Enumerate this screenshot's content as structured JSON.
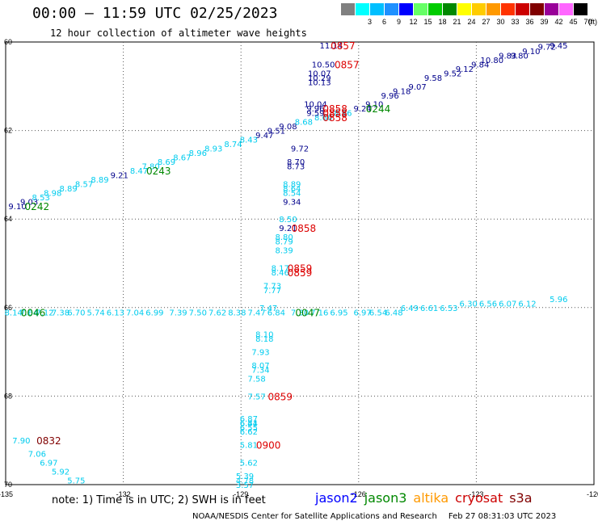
{
  "header": {
    "title": "00:00 — 11:59 UTC 02/25/2023",
    "subtitle": "12 hour collection of altimeter wave heights"
  },
  "scale": {
    "unit": "(ft)",
    "items": [
      {
        "label": "",
        "color": "#808080"
      },
      {
        "label": "3",
        "color": "#00ffff"
      },
      {
        "label": "6",
        "color": "#00bfff"
      },
      {
        "label": "9",
        "color": "#1e90ff"
      },
      {
        "label": "12",
        "color": "#0000ff"
      },
      {
        "label": "15",
        "color": "#66ff66"
      },
      {
        "label": "18",
        "color": "#00cc00"
      },
      {
        "label": "21",
        "color": "#008800"
      },
      {
        "label": "24",
        "color": "#ffff00"
      },
      {
        "label": "27",
        "color": "#ffcc00"
      },
      {
        "label": "30",
        "color": "#ff9900"
      },
      {
        "label": "33",
        "color": "#ff3300"
      },
      {
        "label": "36",
        "color": "#cc0000"
      },
      {
        "label": "39",
        "color": "#800000"
      },
      {
        "label": "42",
        "color": "#990099"
      },
      {
        "label": "45",
        "color": "#ff66ff"
      },
      {
        "label": "70",
        "color": "#000000"
      }
    ]
  },
  "axes": {
    "lon_labels": [
      "-135",
      "-132",
      "-129",
      "-126",
      "-123",
      "-120"
    ],
    "lat_labels": [
      "60",
      "62",
      "64",
      "66",
      "68",
      "70"
    ]
  },
  "legend": {
    "note": "note: 1) Time is in UTC; 2) SWH is in feet",
    "satellites": [
      {
        "name": "jason2",
        "color": "#0000ff"
      },
      {
        "name": "jason3",
        "color": "#008800"
      },
      {
        "name": "altika",
        "color": "#ff9900"
      },
      {
        "name": "cryosat",
        "color": "#cc0000"
      },
      {
        "name": "s3a",
        "color": "#800000"
      }
    ]
  },
  "footer": {
    "credit": "NOAA/NESDIS Center for Satellite Applications and Research",
    "timestamp": "Feb 27 08:31:03 UTC 2023"
  },
  "colors": {
    "blue": "#00008b",
    "cyan": "#00ccee",
    "red": "#dd0000",
    "green": "#008800",
    "maroon": "#800000"
  },
  "tracks": [
    {
      "name": "track-jason3-0242-0244",
      "color": "cyan",
      "points": [
        {
          "lon": -134.7,
          "lat": 63.7,
          "text": "9.10",
          "color": "blue"
        },
        {
          "lon": -134.4,
          "lat": 63.6,
          "text": "9.03",
          "color": "blue"
        },
        {
          "lon": -134.1,
          "lat": 63.5,
          "text": "8.53"
        },
        {
          "lon": -133.8,
          "lat": 63.4,
          "text": "8.98"
        },
        {
          "lon": -133.4,
          "lat": 63.3,
          "text": "8.89"
        },
        {
          "lon": -133.0,
          "lat": 63.2,
          "text": "8.57"
        },
        {
          "lon": -132.6,
          "lat": 63.1,
          "text": "8.89"
        },
        {
          "lon": -132.1,
          "lat": 63.0,
          "text": "9.21",
          "color": "blue"
        },
        {
          "lon": -131.6,
          "lat": 62.9,
          "text": "8.47"
        },
        {
          "lon": -131.3,
          "lat": 62.8,
          "text": "7.80"
        },
        {
          "lon": -130.9,
          "lat": 62.7,
          "text": "8.69"
        },
        {
          "lon": -130.5,
          "lat": 62.6,
          "text": "8.67"
        },
        {
          "lon": -130.1,
          "lat": 62.5,
          "text": "8.96"
        },
        {
          "lon": -129.7,
          "lat": 62.4,
          "text": "8.93"
        },
        {
          "lon": -129.2,
          "lat": 62.3,
          "text": "8.74"
        },
        {
          "lon": -128.8,
          "lat": 62.2,
          "text": "8.43"
        },
        {
          "lon": -128.4,
          "lat": 62.1,
          "text": "9.47",
          "color": "blue"
        },
        {
          "lon": -128.1,
          "lat": 62.0,
          "text": "9.51",
          "color": "blue"
        },
        {
          "lon": -127.8,
          "lat": 61.9,
          "text": "9.08",
          "color": "blue"
        },
        {
          "lon": -127.4,
          "lat": 61.8,
          "text": "8.68"
        },
        {
          "lon": -126.9,
          "lat": 61.7,
          "text": "8.66"
        },
        {
          "lon": -126.4,
          "lat": 61.6,
          "text": "8.96"
        },
        {
          "lon": -125.9,
          "lat": 61.5,
          "text": "9.24",
          "color": "blue"
        },
        {
          "lon": -125.6,
          "lat": 61.4,
          "text": "9.10",
          "color": "blue"
        },
        {
          "lon": -125.2,
          "lat": 61.2,
          "text": "9.96",
          "color": "blue"
        },
        {
          "lon": -124.9,
          "lat": 61.1,
          "text": "9.18",
          "color": "blue"
        },
        {
          "lon": -124.5,
          "lat": 61.0,
          "text": "9.07",
          "color": "blue"
        },
        {
          "lon": -124.1,
          "lat": 60.8,
          "text": "9.58",
          "color": "blue"
        },
        {
          "lon": -123.6,
          "lat": 60.7,
          "text": "9.52",
          "color": "blue"
        },
        {
          "lon": -123.3,
          "lat": 60.6,
          "text": "9.12",
          "color": "blue"
        },
        {
          "lon": -122.9,
          "lat": 60.5,
          "text": "9.84",
          "color": "blue"
        },
        {
          "lon": -122.6,
          "lat": 60.4,
          "text": "10.80",
          "color": "blue"
        },
        {
          "lon": -122.2,
          "lat": 60.3,
          "text": "9.83",
          "color": "blue"
        },
        {
          "lon": -121.9,
          "lat": 60.3,
          "text": "9.80",
          "color": "blue"
        },
        {
          "lon": -121.6,
          "lat": 60.2,
          "text": "9.10",
          "color": "blue"
        },
        {
          "lon": -121.2,
          "lat": 60.1,
          "text": "9.72",
          "color": "blue"
        },
        {
          "lon": -120.9,
          "lat": 60.0,
          "text": "9.45",
          "color": "blue"
        }
      ]
    },
    {
      "name": "track-jason3-0046-0047",
      "color": "cyan",
      "points": [
        {
          "lon": -134.8,
          "lat": 66.1,
          "text": "8.14"
        },
        {
          "lon": -134.4,
          "lat": 66.1,
          "text": "7.64"
        },
        {
          "lon": -134.0,
          "lat": 66.1,
          "text": "7.12"
        },
        {
          "lon": -133.6,
          "lat": 66.1,
          "text": "7.38"
        },
        {
          "lon": -133.2,
          "lat": 66.1,
          "text": "6.70"
        },
        {
          "lon": -132.7,
          "lat": 66.1,
          "text": "5.74"
        },
        {
          "lon": -132.2,
          "lat": 66.1,
          "text": "6.13"
        },
        {
          "lon": -131.7,
          "lat": 66.1,
          "text": "7.04"
        },
        {
          "lon": -131.2,
          "lat": 66.1,
          "text": "6.99"
        },
        {
          "lon": -130.6,
          "lat": 66.1,
          "text": "7.39"
        },
        {
          "lon": -130.1,
          "lat": 66.1,
          "text": "7.50"
        },
        {
          "lon": -129.6,
          "lat": 66.1,
          "text": "7.62"
        },
        {
          "lon": -129.1,
          "lat": 66.1,
          "text": "8.38"
        },
        {
          "lon": -128.6,
          "lat": 66.1,
          "text": "7.47"
        },
        {
          "lon": -128.1,
          "lat": 66.1,
          "text": "6.84"
        },
        {
          "lon": -127.5,
          "lat": 66.1,
          "text": "7.30"
        },
        {
          "lon": -127.0,
          "lat": 66.1,
          "text": "7.16"
        },
        {
          "lon": -126.5,
          "lat": 66.1,
          "text": "6.95"
        },
        {
          "lon": -125.9,
          "lat": 66.1,
          "text": "6.97"
        },
        {
          "lon": -125.5,
          "lat": 66.1,
          "text": "6.54"
        },
        {
          "lon": -125.1,
          "lat": 66.1,
          "text": "6.48"
        },
        {
          "lon": -124.7,
          "lat": 66.0,
          "text": "6.49"
        },
        {
          "lon": -124.2,
          "lat": 66.0,
          "text": "6.61"
        },
        {
          "lon": -123.7,
          "lat": 66.0,
          "text": "6.53"
        },
        {
          "lon": -123.2,
          "lat": 65.9,
          "text": "6.30"
        },
        {
          "lon": -122.7,
          "lat": 65.9,
          "text": "6.56"
        },
        {
          "lon": -122.2,
          "lat": 65.9,
          "text": "6.07"
        },
        {
          "lon": -121.7,
          "lat": 65.9,
          "text": "6.12"
        },
        {
          "lon": -120.9,
          "lat": 65.8,
          "text": "5.96"
        }
      ]
    },
    {
      "name": "track-cryosat-0857-0900",
      "color": "cyan",
      "points": [
        {
          "lon": -126.7,
          "lat": 60.0,
          "text": "11.14",
          "color": "blue"
        },
        {
          "lon": -126.9,
          "lat": 60.5,
          "text": "10.50",
          "color": "blue"
        },
        {
          "lon": -127.0,
          "lat": 60.7,
          "text": "10.07",
          "color": "blue"
        },
        {
          "lon": -127.0,
          "lat": 60.8,
          "text": "10.29",
          "color": "blue"
        },
        {
          "lon": -127.0,
          "lat": 60.9,
          "text": "10.13",
          "color": "blue"
        },
        {
          "lon": -127.1,
          "lat": 61.4,
          "text": "10.04",
          "color": "blue"
        },
        {
          "lon": -127.1,
          "lat": 61.5,
          "text": "9.96",
          "color": "blue"
        },
        {
          "lon": -127.1,
          "lat": 61.6,
          "text": "9.59",
          "color": "blue"
        },
        {
          "lon": -127.5,
          "lat": 62.4,
          "text": "9.72",
          "color": "blue"
        },
        {
          "lon": -127.6,
          "lat": 62.7,
          "text": "8.70",
          "color": "blue"
        },
        {
          "lon": -127.6,
          "lat": 62.8,
          "text": "8.73",
          "color": "blue"
        },
        {
          "lon": -127.7,
          "lat": 63.2,
          "text": "8.89"
        },
        {
          "lon": -127.7,
          "lat": 63.3,
          "text": "8.64"
        },
        {
          "lon": -127.7,
          "lat": 63.4,
          "text": "8.54"
        },
        {
          "lon": -127.7,
          "lat": 63.6,
          "text": "9.34",
          "color": "blue"
        },
        {
          "lon": -127.8,
          "lat": 64.0,
          "text": "8.50"
        },
        {
          "lon": -127.8,
          "lat": 64.2,
          "text": "9.21",
          "color": "blue"
        },
        {
          "lon": -127.9,
          "lat": 64.4,
          "text": "8.80"
        },
        {
          "lon": -127.9,
          "lat": 64.5,
          "text": "8.79"
        },
        {
          "lon": -127.9,
          "lat": 64.7,
          "text": "8.39"
        },
        {
          "lon": -128.0,
          "lat": 65.1,
          "text": "8.17"
        },
        {
          "lon": -128.0,
          "lat": 65.2,
          "text": "8.46"
        },
        {
          "lon": -128.2,
          "lat": 65.5,
          "text": "7.73"
        },
        {
          "lon": -128.2,
          "lat": 65.6,
          "text": "7.77"
        },
        {
          "lon": -128.3,
          "lat": 66.0,
          "text": "7.47"
        },
        {
          "lon": -128.4,
          "lat": 66.6,
          "text": "8.10"
        },
        {
          "lon": -128.4,
          "lat": 66.7,
          "text": "8.18"
        },
        {
          "lon": -128.5,
          "lat": 67.0,
          "text": "7.93"
        },
        {
          "lon": -128.5,
          "lat": 67.3,
          "text": "8.07"
        },
        {
          "lon": -128.5,
          "lat": 67.4,
          "text": "7.34"
        },
        {
          "lon": -128.6,
          "lat": 67.6,
          "text": "7.58"
        },
        {
          "lon": -128.6,
          "lat": 68.0,
          "text": "7.57"
        },
        {
          "lon": -128.8,
          "lat": 68.5,
          "text": "6.87"
        },
        {
          "lon": -128.8,
          "lat": 68.6,
          "text": "6.81"
        },
        {
          "lon": -128.8,
          "lat": 68.6,
          "text": "6.44"
        },
        {
          "lon": -128.8,
          "lat": 68.7,
          "text": "6.55"
        },
        {
          "lon": -128.8,
          "lat": 68.8,
          "text": "6.62"
        },
        {
          "lon": -128.8,
          "lat": 69.1,
          "text": "5.81"
        },
        {
          "lon": -128.8,
          "lat": 69.5,
          "text": "5.62"
        },
        {
          "lon": -128.9,
          "lat": 69.8,
          "text": "5.39"
        },
        {
          "lon": -128.9,
          "lat": 69.9,
          "text": "4.78"
        },
        {
          "lon": -128.9,
          "lat": 70.0,
          "text": "3.57"
        }
      ]
    },
    {
      "name": "track-s3a-0832",
      "color": "cyan",
      "points": [
        {
          "lon": -134.6,
          "lat": 69.0,
          "text": "7.90"
        },
        {
          "lon": -134.2,
          "lat": 69.3,
          "text": "7.06"
        },
        {
          "lon": -133.9,
          "lat": 69.5,
          "text": "6.97"
        },
        {
          "lon": -133.6,
          "lat": 69.7,
          "text": "5.92"
        },
        {
          "lon": -133.2,
          "lat": 69.9,
          "text": "5.75"
        }
      ]
    }
  ],
  "time_labels": [
    {
      "text": "0857",
      "lon": -126.4,
      "lat": 60.0,
      "color": "red"
    },
    {
      "text": "0857",
      "lon": -126.3,
      "lat": 60.5,
      "color": "red"
    },
    {
      "text": "0858",
      "lon": -126.6,
      "lat": 61.5,
      "color": "red"
    },
    {
      "text": "0858",
      "lon": -126.6,
      "lat": 61.6,
      "color": "red"
    },
    {
      "text": "0858",
      "lon": -126.6,
      "lat": 61.7,
      "color": "red"
    },
    {
      "text": "0858",
      "lon": -127.4,
      "lat": 64.2,
      "color": "red"
    },
    {
      "text": "0859",
      "lon": -127.5,
      "lat": 65.1,
      "color": "red"
    },
    {
      "text": "0859",
      "lon": -127.5,
      "lat": 65.2,
      "color": "red"
    },
    {
      "text": "0859",
      "lon": -128.0,
      "lat": 68.0,
      "color": "red"
    },
    {
      "text": "0900",
      "lon": -128.3,
      "lat": 69.1,
      "color": "red"
    },
    {
      "text": "0832",
      "lon": -133.9,
      "lat": 69.0,
      "color": "maroon"
    },
    {
      "text": "0244",
      "lon": -125.5,
      "lat": 61.5,
      "color": "green"
    },
    {
      "text": "0243",
      "lon": -131.1,
      "lat": 62.9,
      "color": "green"
    },
    {
      "text": "0242",
      "lon": -134.2,
      "lat": 63.7,
      "color": "green"
    },
    {
      "text": "0046",
      "lon": -134.3,
      "lat": 66.1,
      "color": "green"
    },
    {
      "text": "0047",
      "lon": -127.3,
      "lat": 66.1,
      "color": "green"
    }
  ]
}
